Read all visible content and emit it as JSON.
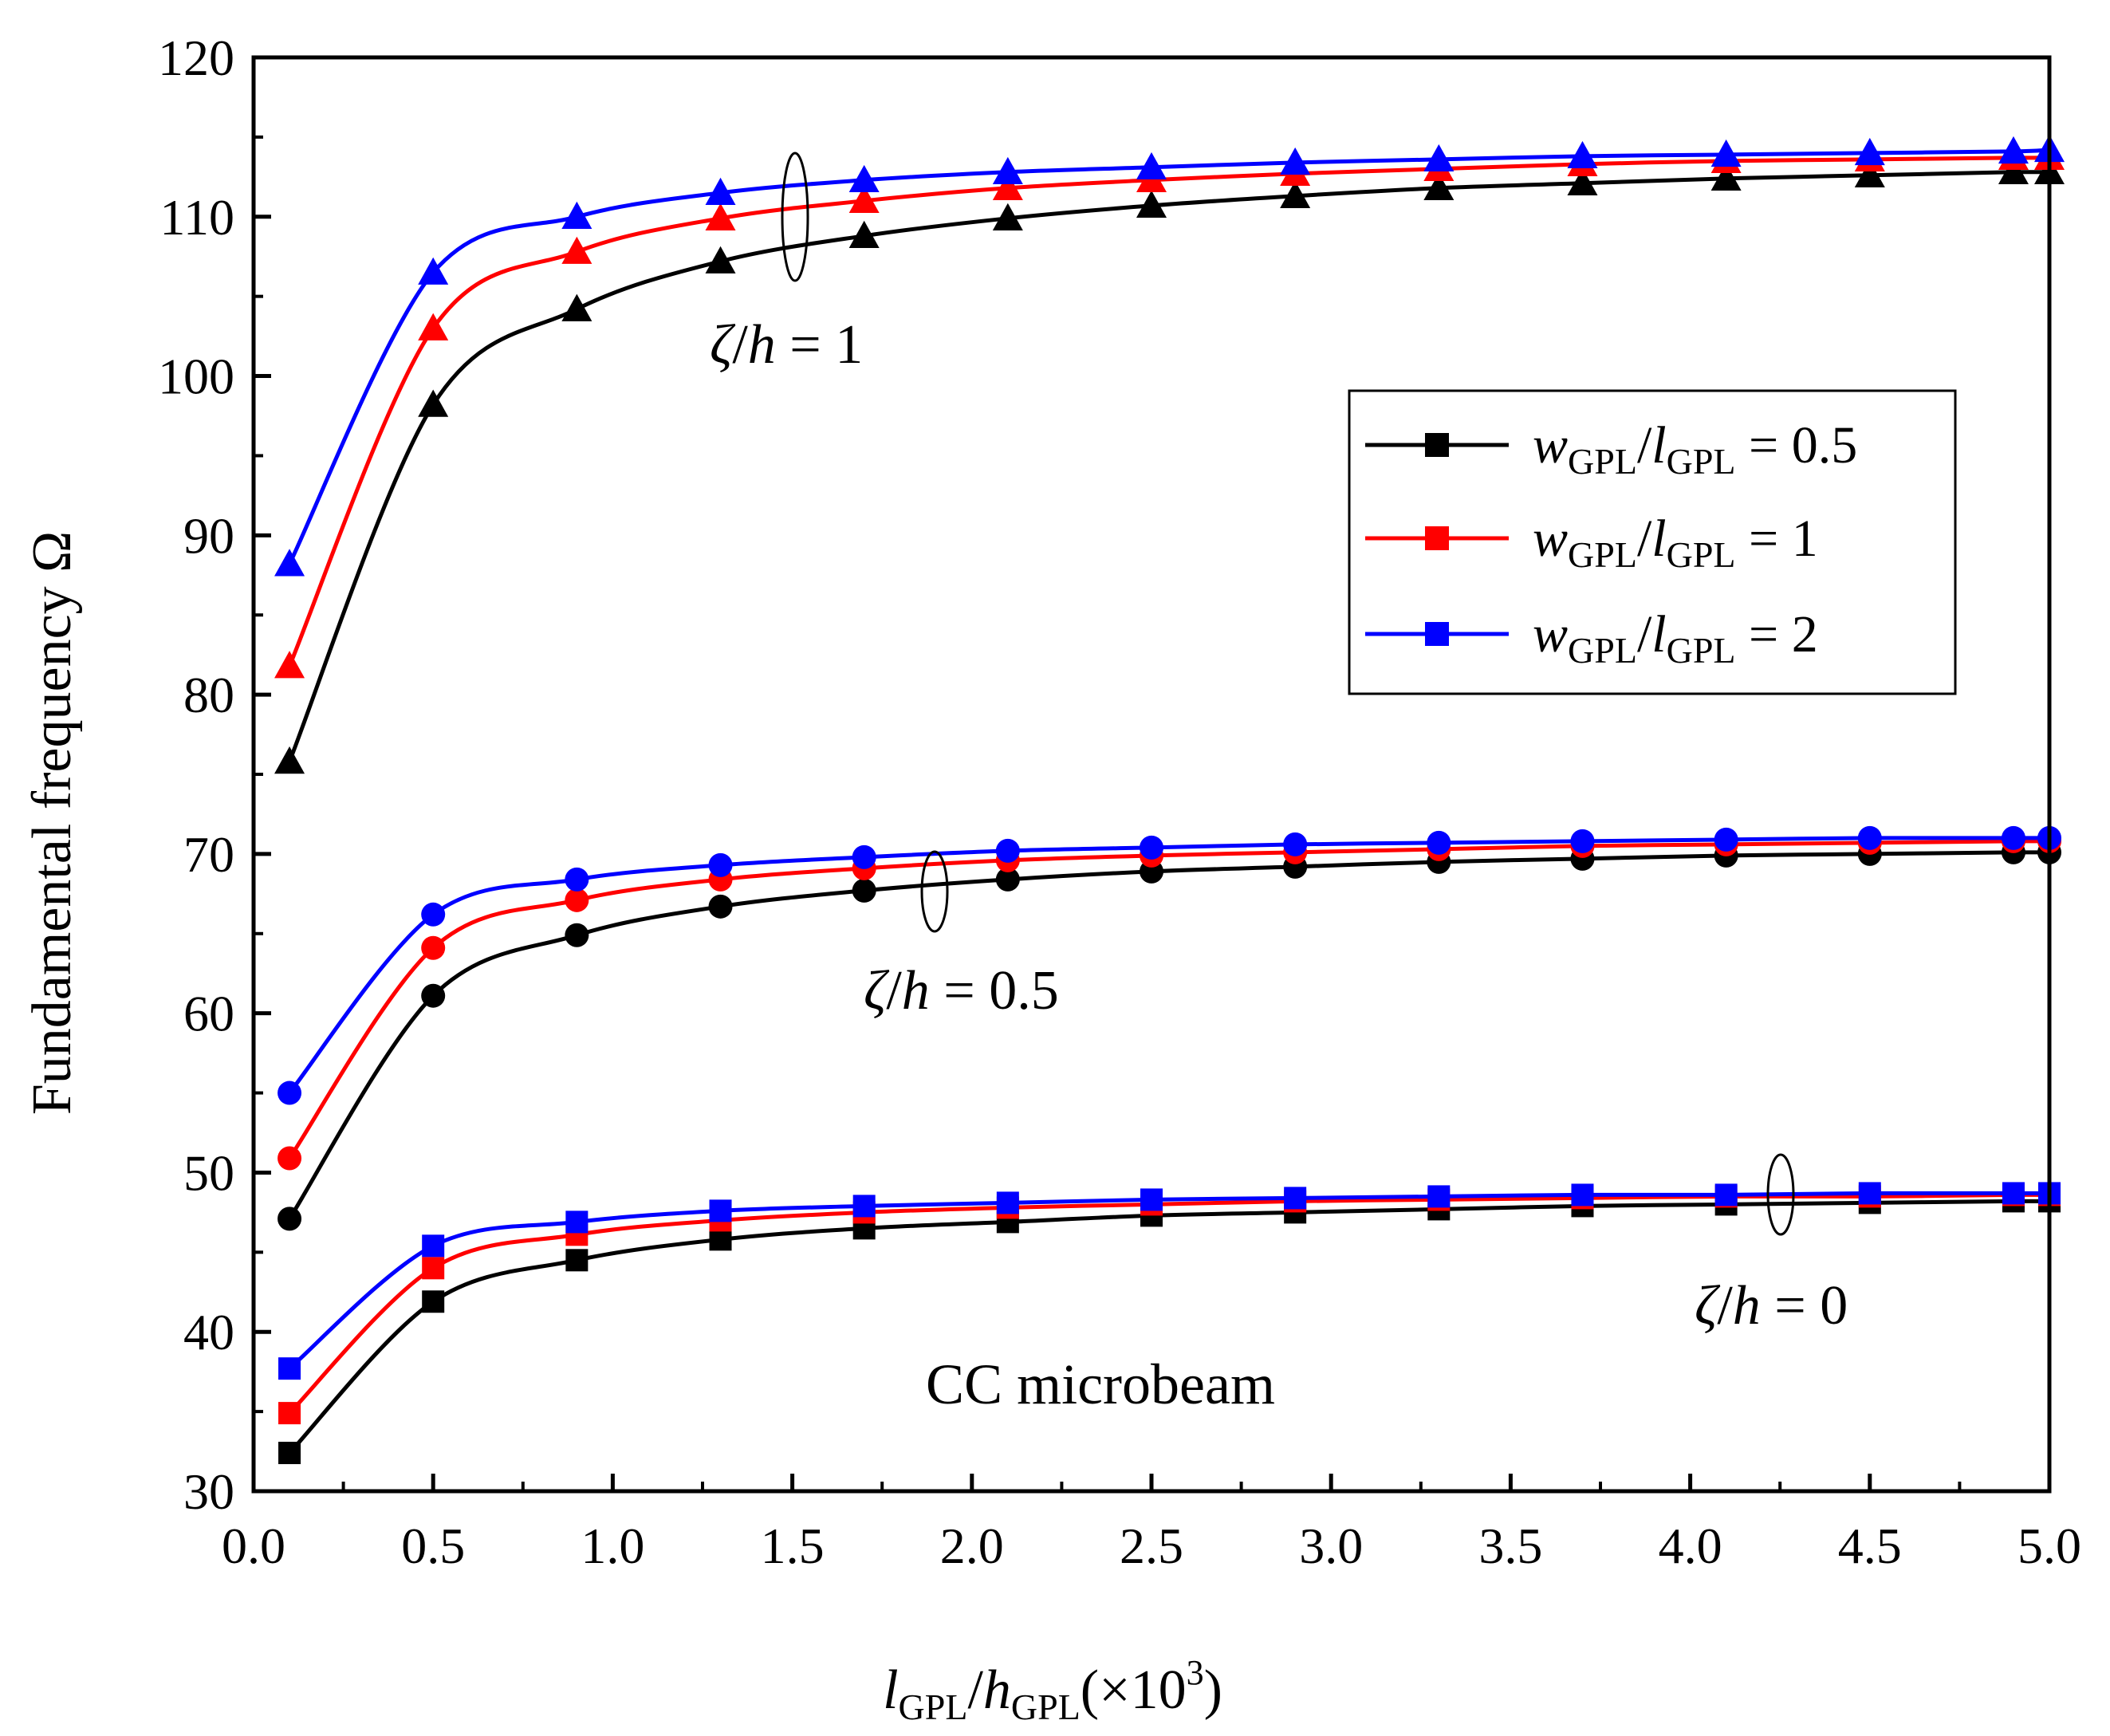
{
  "chart_data": {
    "type": "line",
    "x": [
      0.1,
      0.5,
      0.9,
      1.3,
      1.7,
      2.1,
      2.5,
      2.9,
      3.3,
      3.7,
      4.1,
      4.5,
      4.9,
      5.0
    ],
    "xlim": [
      0.0,
      5.0
    ],
    "ylim": [
      30,
      120
    ],
    "x_ticks": [
      "0.0",
      "0.5",
      "1.0",
      "1.5",
      "2.0",
      "2.5",
      "3.0",
      "3.5",
      "4.0",
      "4.5",
      "5.0"
    ],
    "y_ticks": [
      "30",
      "40",
      "50",
      "60",
      "70",
      "80",
      "90",
      "100",
      "110",
      "120"
    ],
    "x_tick_values": [
      0.0,
      0.5,
      1.0,
      1.5,
      2.0,
      2.5,
      3.0,
      3.5,
      4.0,
      4.5,
      5.0
    ],
    "y_tick_values": [
      30,
      40,
      50,
      60,
      70,
      80,
      90,
      100,
      110,
      120
    ],
    "xlabel": {
      "l": "l",
      "l_sub": "GPL",
      "slash": "/",
      "h": "h",
      "h_sub": "GPL",
      "paren_open": "(×10",
      "exp": "3",
      "paren_close": ")"
    },
    "ylabel": "Fundamental frequency Ω",
    "grid": false,
    "legend_position": "right-upper",
    "legend": [
      {
        "w": "w",
        "w_sub": "GPL",
        "slash": "/",
        "l": "l",
        "l_sub": "GPL",
        "eq": " = 0.5",
        "color": "#000000"
      },
      {
        "w": "w",
        "w_sub": "GPL",
        "slash": "/",
        "l": "l",
        "l_sub": "GPL",
        "eq": " = 1",
        "color": "#ff0000"
      },
      {
        "w": "w",
        "w_sub": "GPL",
        "slash": "/",
        "l": "l",
        "l_sub": "GPL",
        "eq": " = 2",
        "color": "#0000ff"
      }
    ],
    "groups": [
      {
        "marker": "triangle",
        "label": {
          "zeta": "ζ",
          "slash": "/",
          "h": "h",
          "eq": " = 1"
        },
        "series": [
          {
            "name": "wGPL/lGPL = 0.5",
            "color": "#000000",
            "values": [
              75.8,
              98.2,
              104.2,
              107.2,
              108.8,
              109.9,
              110.7,
              111.3,
              111.8,
              112.1,
              112.4,
              112.6,
              112.8,
              112.8
            ]
          },
          {
            "name": "wGPL/lGPL = 1",
            "color": "#ff0000",
            "values": [
              81.8,
              103.0,
              107.8,
              109.9,
              111.0,
              111.8,
              112.3,
              112.7,
              113.0,
              113.3,
              113.5,
              113.6,
              113.7,
              113.7
            ]
          },
          {
            "name": "wGPL/lGPL = 2",
            "color": "#0000ff",
            "values": [
              88.2,
              106.5,
              110.0,
              111.5,
              112.3,
              112.8,
              113.1,
              113.4,
              113.6,
              113.8,
              113.9,
              114.0,
              114.1,
              114.2
            ]
          }
        ]
      },
      {
        "marker": "circle",
        "label": {
          "zeta": "ζ",
          "slash": "/",
          "h": "h",
          "eq": " = 0.5"
        },
        "series": [
          {
            "name": "wGPL/lGPL = 0.5",
            "color": "#000000",
            "values": [
              47.1,
              61.1,
              64.9,
              66.7,
              67.7,
              68.4,
              68.9,
              69.2,
              69.5,
              69.7,
              69.9,
              70.0,
              70.1,
              70.1
            ]
          },
          {
            "name": "wGPL/lGPL = 1",
            "color": "#ff0000",
            "values": [
              50.9,
              64.1,
              67.1,
              68.4,
              69.1,
              69.6,
              69.9,
              70.1,
              70.3,
              70.5,
              70.6,
              70.7,
              70.8,
              70.8
            ]
          },
          {
            "name": "wGPL/lGPL = 2",
            "color": "#0000ff",
            "values": [
              55.0,
              66.2,
              68.4,
              69.3,
              69.8,
              70.2,
              70.4,
              70.6,
              70.7,
              70.8,
              70.9,
              71.0,
              71.0,
              71.0
            ]
          }
        ]
      },
      {
        "marker": "square",
        "label": {
          "zeta": "ζ",
          "slash": "/",
          "h": "h",
          "eq": " = 0"
        },
        "series": [
          {
            "name": "wGPL/lGPL = 0.5",
            "color": "#000000",
            "values": [
              32.4,
              41.9,
              44.5,
              45.8,
              46.5,
              46.9,
              47.3,
              47.5,
              47.7,
              47.9,
              48.0,
              48.1,
              48.2,
              48.2
            ]
          },
          {
            "name": "wGPL/lGPL = 1",
            "color": "#ff0000",
            "values": [
              34.9,
              44.0,
              46.1,
              47.0,
              47.5,
              47.8,
              48.0,
              48.2,
              48.3,
              48.4,
              48.5,
              48.5,
              48.6,
              48.6
            ]
          },
          {
            "name": "wGPL/lGPL = 2",
            "color": "#0000ff",
            "values": [
              37.7,
              45.4,
              46.9,
              47.6,
              47.9,
              48.1,
              48.3,
              48.4,
              48.5,
              48.6,
              48.6,
              48.7,
              48.7,
              48.7
            ]
          }
        ]
      }
    ],
    "annotations": [
      {
        "text": "CC microbeam"
      }
    ]
  }
}
